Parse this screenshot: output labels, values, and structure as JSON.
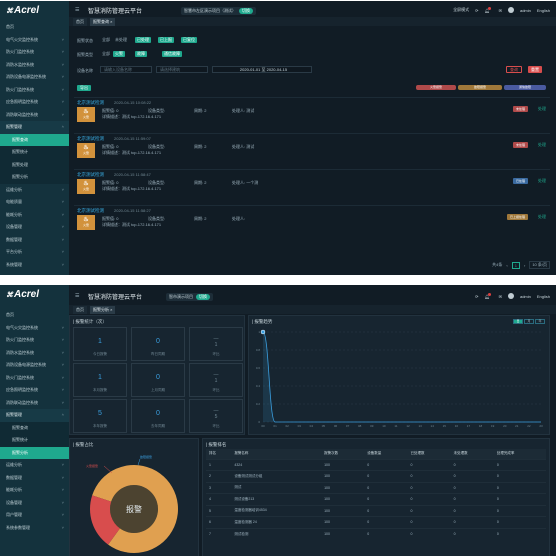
{
  "brand": {
    "logo_text": "Acrel",
    "logo_mark": "⌘"
  },
  "screen1": {
    "app_title": "智慧消防管理云平台",
    "project_label": "智慧市左区演示项目（测试）",
    "project_tag": "切换",
    "topbar": {
      "fullscreen": "全屏模式",
      "user": "admin",
      "lang": "English"
    },
    "sidebar": [
      {
        "label": "首页",
        "type": "item"
      },
      {
        "label": "电气火灾监控系统",
        "type": "item",
        "arrow": "˅"
      },
      {
        "label": "防火门监控系统",
        "type": "item",
        "arrow": "˅"
      },
      {
        "label": "消防水监控系统",
        "type": "item",
        "arrow": "˅"
      },
      {
        "label": "消防设备电源监控系统",
        "type": "item",
        "arrow": "˅"
      },
      {
        "label": "防火门监控系统",
        "type": "item",
        "arrow": "˅"
      },
      {
        "label": "应急照明监控系统",
        "type": "item",
        "arrow": "˅"
      },
      {
        "label": "消防联动监控系统",
        "type": "item",
        "arrow": "˅"
      },
      {
        "label": "报警管理",
        "type": "group",
        "arrow": "˄"
      },
      {
        "label": "报警查询",
        "type": "active"
      },
      {
        "label": "报警统计",
        "type": "sub"
      },
      {
        "label": "报警处理",
        "type": "sub"
      },
      {
        "label": "报警分析",
        "type": "sub"
      },
      {
        "label": "运维分析",
        "type": "item",
        "arrow": "˅"
      },
      {
        "label": "电能质量",
        "type": "item",
        "arrow": "˅"
      },
      {
        "label": "能耗分析",
        "type": "item",
        "arrow": "˅"
      },
      {
        "label": "设备管理",
        "type": "item",
        "arrow": "˅"
      },
      {
        "label": "数据管理",
        "type": "item",
        "arrow": "˅"
      },
      {
        "label": "平台分析",
        "type": "item",
        "arrow": "˅"
      },
      {
        "label": "系统管理",
        "type": "item",
        "arrow": "˅"
      }
    ],
    "tabs": [
      "首页",
      "报警查询 ×"
    ],
    "filters": {
      "status_label": "报警状态",
      "status_all": "全部",
      "status_opts": [
        "未处理",
        "已处理",
        "已上报",
        "已复位"
      ],
      "type_label": "报警类型",
      "type_all": "全部",
      "type_opts": [
        "火警",
        "故障",
        "通信故障"
      ],
      "search_label": "设备名称",
      "search_placeholder": "请输入设备名称",
      "select_placeholder": "请选择建筑",
      "date_from": "2020-01-01",
      "date_sep": "至",
      "date_to": "2020-04-15",
      "search_btn": "查询",
      "reset_btn": "重置"
    },
    "export_btn": "导出",
    "legend": [
      {
        "label": "火警报警",
        "color": "#b04a4a"
      },
      {
        "label": "故障报警",
        "color": "#a0783a"
      },
      {
        "label": "通信故障",
        "color": "#4a5aa0"
      }
    ],
    "alarms": [
      {
        "title": "北京测试检测",
        "time": "2020-04-15 10:08:22",
        "icon_label": "火警",
        "f1": "报警值: 0",
        "f2": "设备类型:",
        "f3": "周期: 2",
        "f4": "处理人: 测试",
        "detail": "详情描述：测试 tcp-172.16.4.171",
        "status": "未处理",
        "status_color": "#b04a4a",
        "action": "处理"
      },
      {
        "title": "北京测试检测",
        "time": "2020-04-15 11:59:07",
        "icon_label": "火警",
        "f1": "报警值: 0",
        "f2": "设备类型:",
        "f3": "周期: 2",
        "f4": "处理人: 测试",
        "detail": "详情描述：测试 tcp-172.16.4.171",
        "status": "未处理",
        "status_color": "#b04a4a",
        "action": "处理"
      },
      {
        "title": "北京测试检测",
        "time": "2020-04-15 11:58:47",
        "icon_label": "火警",
        "f1": "报警值: 0",
        "f2": "设备类型:",
        "f3": "周期: 2",
        "f4": "处理人: 一个测",
        "detail": "详情描述：测试 tcp-172.16.4.171",
        "status": "已处理",
        "status_color": "#3a6aa0",
        "action": "处理"
      },
      {
        "title": "北京测试检测",
        "time": "2020-04-15 11:58:27",
        "icon_label": "火警",
        "f1": "报警值: 0",
        "f2": "设备类型:",
        "f3": "周期: 2",
        "f4": "处理人:",
        "detail": "详情描述：测试 tcp-172.16.4.171",
        "status": "已上报处理",
        "status_color": "#a0783a",
        "action": "处理"
      }
    ],
    "pager": {
      "total": "共4条",
      "page": "1",
      "size": "10 条/页"
    }
  },
  "screen2": {
    "app_title": "智慧消防管理云平台",
    "project_label": "智市演示项目",
    "project_tag": "切换",
    "topbar": {
      "user": "admin",
      "lang": "English"
    },
    "sidebar": [
      {
        "label": "首页",
        "type": "item"
      },
      {
        "label": "电气火灾监控系统",
        "type": "item",
        "arrow": "˅"
      },
      {
        "label": "防火门监控系统",
        "type": "item",
        "arrow": "˅"
      },
      {
        "label": "消防水监控系统",
        "type": "item",
        "arrow": "˅"
      },
      {
        "label": "消防设备电源监控系统",
        "type": "item",
        "arrow": "˅"
      },
      {
        "label": "防火门监控系统",
        "type": "item",
        "arrow": "˅"
      },
      {
        "label": "应急照明监控系统",
        "type": "item",
        "arrow": "˅"
      },
      {
        "label": "消防联动监控系统",
        "type": "item",
        "arrow": "˅"
      },
      {
        "label": "报警管理",
        "type": "group",
        "arrow": "˄"
      },
      {
        "label": "报警查询",
        "type": "sub"
      },
      {
        "label": "报警统计",
        "type": "sub"
      },
      {
        "label": "报警分析",
        "type": "active"
      },
      {
        "label": "运维分析",
        "type": "item",
        "arrow": "˅"
      },
      {
        "label": "数据管理",
        "type": "item",
        "arrow": "˅"
      },
      {
        "label": "能耗分析",
        "type": "item",
        "arrow": "˅"
      },
      {
        "label": "设备管理",
        "type": "item",
        "arrow": "˅"
      },
      {
        "label": "用户管理",
        "type": "item",
        "arrow": "˅"
      },
      {
        "label": "系统参数管理",
        "type": "item",
        "arrow": "˅"
      }
    ],
    "tabs": [
      "首页",
      "报警分析 ×"
    ],
    "stats_title": "| 报警统计（次）",
    "stats": [
      {
        "value": "1",
        "label": "今日报警"
      },
      {
        "value": "0",
        "label": "昨日同期"
      },
      {
        "value": "—\n1",
        "label": "环比",
        "neg": true
      },
      {
        "value": "1",
        "label": "本月报警"
      },
      {
        "value": "0",
        "label": "上月同期"
      },
      {
        "value": "—\n1",
        "label": "环比",
        "neg": true
      },
      {
        "value": "5",
        "label": "本年报警"
      },
      {
        "value": "0",
        "label": "去年同期"
      },
      {
        "value": "—\n5",
        "label": "环比",
        "neg": true
      }
    ],
    "trend_title": "| 报警趋势",
    "mode_btns": [
      "日",
      "月",
      "年"
    ],
    "pie_title": "| 报警占比",
    "pie_center": "报警",
    "rank_title": "| 报警排名",
    "rank_columns": [
      "排名",
      "报警名称",
      "报警次数",
      "设备数量",
      "已处理数",
      "未处理数",
      "处理完成率"
    ],
    "rank_rows": [
      [
        "1",
        "4324",
        "100",
        "0",
        "0",
        "0",
        "0"
      ],
      [
        "2",
        "设备测试测试分组",
        "100",
        "0",
        "0",
        "0",
        "0"
      ],
      [
        "3",
        "测试",
        "100",
        "0",
        "0",
        "0",
        "0"
      ],
      [
        "4",
        "测试设备213",
        "100",
        "0",
        "0",
        "0",
        "0"
      ],
      [
        "5",
        "温度检测器培训4534",
        "100",
        "0",
        "0",
        "0",
        "0"
      ],
      [
        "6",
        "温度检测器 24",
        "100",
        "0",
        "0",
        "0",
        "0"
      ],
      [
        "7",
        "测试检测",
        "100",
        "0",
        "0",
        "0",
        "0"
      ]
    ]
  },
  "chart_data": [
    {
      "type": "area",
      "x": [
        "00",
        "01",
        "02",
        "03",
        "04",
        "05",
        "06",
        "07",
        "08",
        "09",
        "10",
        "11",
        "12",
        "13",
        "14",
        "15",
        "16",
        "17",
        "18",
        "19",
        "20",
        "21",
        "22",
        "23"
      ],
      "series": [
        {
          "values": [
            1,
            0,
            0,
            0,
            0,
            0,
            0,
            0,
            0,
            0,
            0,
            0,
            0,
            0,
            0,
            0,
            0,
            0,
            0,
            0,
            0,
            0,
            0,
            0
          ]
        }
      ],
      "ylim": [
        0,
        1
      ],
      "yticks": [
        "0",
        "0.2",
        "0.4",
        "0.6",
        "0.8",
        "1"
      ],
      "color": "#3a9fe0",
      "grid": true
    },
    {
      "type": "pie",
      "labels": [
        "火警报警",
        "故障报警"
      ],
      "values": [
        80,
        20
      ],
      "colors": [
        "#e0a050",
        "#d84d4d"
      ],
      "legend_labels": [
        "火警报警",
        "故障报警"
      ]
    }
  ]
}
